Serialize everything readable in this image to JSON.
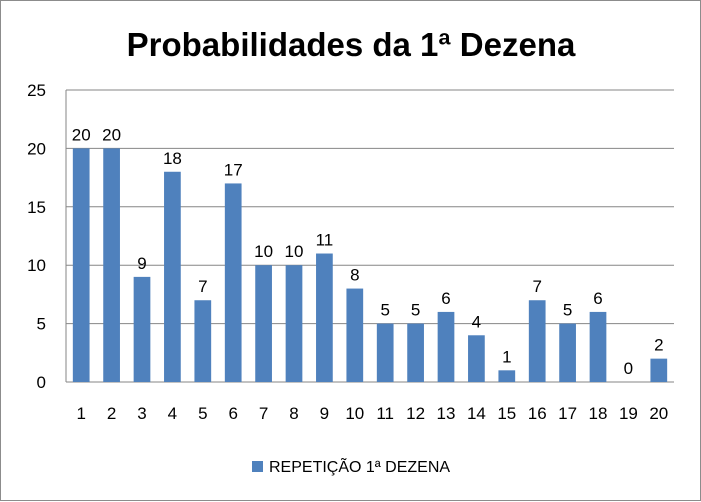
{
  "chart_data": {
    "type": "bar",
    "title": "Probabilidades da 1ª Dezena",
    "categories": [
      "1",
      "2",
      "3",
      "4",
      "5",
      "6",
      "7",
      "8",
      "9",
      "10",
      "11",
      "12",
      "13",
      "14",
      "15",
      "16",
      "17",
      "18",
      "19",
      "20"
    ],
    "series": [
      {
        "name": "REPETIÇÃO 1ª DEZENA",
        "color": "#4f81bd",
        "values": [
          20,
          20,
          9,
          18,
          7,
          17,
          10,
          10,
          11,
          8,
          5,
          5,
          6,
          4,
          1,
          7,
          5,
          6,
          0,
          2
        ]
      }
    ],
    "ylim": [
      0,
      25
    ],
    "yticks": [
      0,
      5,
      10,
      15,
      20,
      25
    ],
    "grid": true,
    "legend": "bottom",
    "data_labels": true
  }
}
